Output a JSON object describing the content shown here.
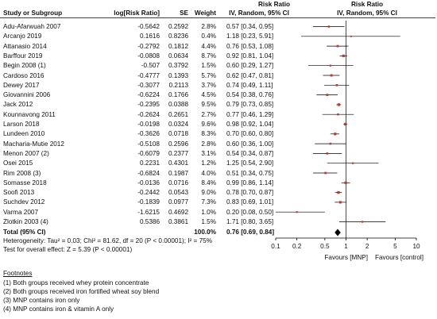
{
  "headers": {
    "study": "Study or Subgroup",
    "log_rr": "log[Risk Ratio]",
    "se": "SE",
    "weight": "Weight",
    "effect_title": "Risk Ratio",
    "effect_method": "IV, Random, 95% CI",
    "plot_title": "Risk Ratio",
    "plot_method": "IV, Random, 95% CI"
  },
  "total": {
    "label": "Total (95% CI)",
    "weight": "100.0%",
    "ci": "0.76 [0.69, 0.84]",
    "heterogeneity": "Heterogeneity: Tau² = 0.03; Chi² = 81.62, df = 20 (P < 0.00001); I² = 75%",
    "overall_test": "Test for overall effect: Z = 5.39 (P < 0.00001)"
  },
  "axis": {
    "ticks": [
      "0.1",
      "0.2",
      "0.5",
      "1",
      "2",
      "5",
      "10"
    ],
    "favours_left": "Favours [MNP]",
    "favours_right": "Favours [control]"
  },
  "footnotes": {
    "title": "Footnotes",
    "items": [
      "(1) Both groups received whey protein concentrate",
      "(2) Both groups received iron fortified wheat soy blend",
      "(3) MNP contains iron only",
      "(4) MNP contains iron & vitamin A only"
    ]
  },
  "colors": {
    "marker": "#c0392b",
    "diamond": "#000000",
    "line": "#000000"
  },
  "chart_data": {
    "type": "forest",
    "scale": "log",
    "xlim": [
      0.1,
      10
    ],
    "rows": [
      {
        "study": "Adu-Afarwuah 2007",
        "log_rr": "-0.5642",
        "se": "0.2592",
        "weight": "2.8%",
        "ci_text": "0.57 [0.34, 0.95]",
        "rr": 0.57,
        "lo": 0.34,
        "hi": 0.95
      },
      {
        "study": "Arcanjo 2019",
        "log_rr": "0.1616",
        "se": "0.8236",
        "weight": "0.4%",
        "ci_text": "1.18 [0.23, 5.91]",
        "rr": 1.18,
        "lo": 0.23,
        "hi": 5.91
      },
      {
        "study": "Attanasio 2014",
        "log_rr": "-0.2792",
        "se": "0.1812",
        "weight": "4.4%",
        "ci_text": "0.76 [0.53, 1.08]",
        "rr": 0.76,
        "lo": 0.53,
        "hi": 1.08
      },
      {
        "study": "Barffour 2019",
        "log_rr": "-0.0808",
        "se": "0.0634",
        "weight": "8.7%",
        "ci_text": "0.92 [0.81, 1.04]",
        "rr": 0.92,
        "lo": 0.81,
        "hi": 1.04
      },
      {
        "study": "Begin 2008 (1)",
        "log_rr": "-0.507",
        "se": "0.3792",
        "weight": "1.5%",
        "ci_text": "0.60 [0.29, 1.27]",
        "rr": 0.6,
        "lo": 0.29,
        "hi": 1.27
      },
      {
        "study": "Cardoso 2016",
        "log_rr": "-0.4777",
        "se": "0.1393",
        "weight": "5.7%",
        "ci_text": "0.62 [0.47, 0.81]",
        "rr": 0.62,
        "lo": 0.47,
        "hi": 0.81
      },
      {
        "study": "Dewey 2017",
        "log_rr": "-0.3077",
        "se": "0.2113",
        "weight": "3.7%",
        "ci_text": "0.74 [0.49, 1.11]",
        "rr": 0.74,
        "lo": 0.49,
        "hi": 1.11
      },
      {
        "study": "Giovannini 2006",
        "log_rr": "-0.6224",
        "se": "0.1766",
        "weight": "4.5%",
        "ci_text": "0.54 [0.38, 0.76]",
        "rr": 0.54,
        "lo": 0.38,
        "hi": 0.76
      },
      {
        "study": "Jack 2012",
        "log_rr": "-0.2395",
        "se": "0.0388",
        "weight": "9.5%",
        "ci_text": "0.79 [0.73, 0.85]",
        "rr": 0.79,
        "lo": 0.73,
        "hi": 0.85
      },
      {
        "study": "Kounnavong 2011",
        "log_rr": "-0.2624",
        "se": "0.2651",
        "weight": "2.7%",
        "ci_text": "0.77 [0.46, 1.29]",
        "rr": 0.77,
        "lo": 0.46,
        "hi": 1.29
      },
      {
        "study": "Larson 2018",
        "log_rr": "-0.0198",
        "se": "0.0324",
        "weight": "9.6%",
        "ci_text": "0.98 [0.92, 1.04]",
        "rr": 0.98,
        "lo": 0.92,
        "hi": 1.04
      },
      {
        "study": "Lundeen 2010",
        "log_rr": "-0.3626",
        "se": "0.0718",
        "weight": "8.3%",
        "ci_text": "0.70 [0.60, 0.80]",
        "rr": 0.7,
        "lo": 0.6,
        "hi": 0.8
      },
      {
        "study": "Macharia-Mutie 2012",
        "log_rr": "-0.5108",
        "se": "0.2596",
        "weight": "2.8%",
        "ci_text": "0.60 [0.36, 1.00]",
        "rr": 0.6,
        "lo": 0.36,
        "hi": 1.0
      },
      {
        "study": "Menon 2007 (2)",
        "log_rr": "-0.6079",
        "se": "0.2377",
        "weight": "3.1%",
        "ci_text": "0.54 [0.34, 0.87]",
        "rr": 0.54,
        "lo": 0.34,
        "hi": 0.87
      },
      {
        "study": "Osei 2015",
        "log_rr": "0.2231",
        "se": "0.4301",
        "weight": "1.2%",
        "ci_text": "1.25 [0.54, 2.90]",
        "rr": 1.25,
        "lo": 0.54,
        "hi": 2.9
      },
      {
        "study": "Rim 2008 (3)",
        "log_rr": "-0.6824",
        "se": "0.1987",
        "weight": "4.0%",
        "ci_text": "0.51 [0.34, 0.75]",
        "rr": 0.51,
        "lo": 0.34,
        "hi": 0.75
      },
      {
        "study": "Somasse 2018",
        "log_rr": "-0.0136",
        "se": "0.0716",
        "weight": "8.4%",
        "ci_text": "0.99 [0.86, 1.14]",
        "rr": 0.99,
        "lo": 0.86,
        "hi": 1.14
      },
      {
        "study": "Soofi 2013",
        "log_rr": "-0.2442",
        "se": "0.0543",
        "weight": "9.0%",
        "ci_text": "0.78 [0.70, 0.87]",
        "rr": 0.78,
        "lo": 0.7,
        "hi": 0.87
      },
      {
        "study": "Suchdev 2012",
        "log_rr": "-0.1839",
        "se": "0.0977",
        "weight": "7.3%",
        "ci_text": "0.83 [0.69, 1.01]",
        "rr": 0.83,
        "lo": 0.69,
        "hi": 1.01
      },
      {
        "study": "Varma 2007",
        "log_rr": "-1.6215",
        "se": "0.4692",
        "weight": "1.0%",
        "ci_text": "0.20 [0.08, 0.50]",
        "rr": 0.2,
        "lo": 0.08,
        "hi": 0.5
      },
      {
        "study": "Zlotkin 2003 (4)",
        "log_rr": "0.5386",
        "se": "0.3861",
        "weight": "1.5%",
        "ci_text": "1.71 [0.80, 3.65]",
        "rr": 1.71,
        "lo": 0.8,
        "hi": 3.65
      }
    ],
    "pooled": {
      "rr": 0.76,
      "lo": 0.69,
      "hi": 0.84
    },
    "tick_values": [
      0.1,
      0.2,
      0.5,
      1,
      2,
      5,
      10
    ]
  }
}
